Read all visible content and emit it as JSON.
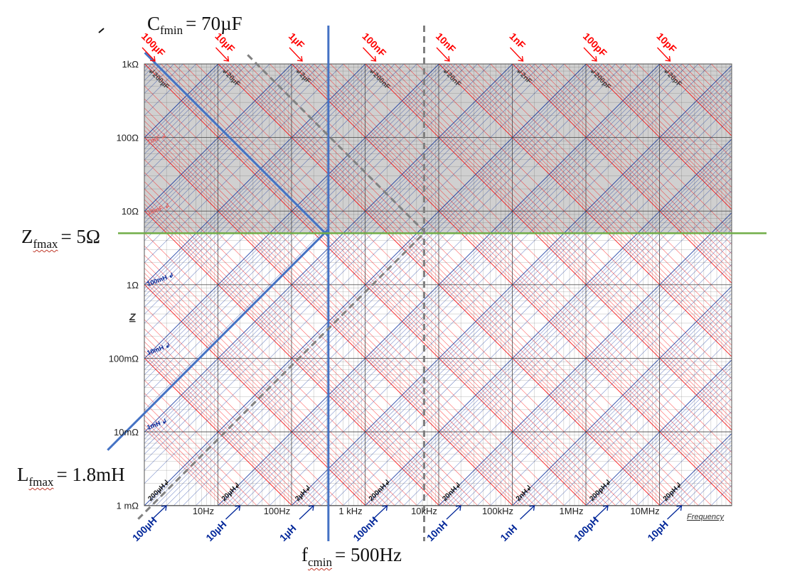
{
  "chart_data": {
    "type": "line",
    "xlabel": "Frequency",
    "ylabel": "Z",
    "x_scale": "log",
    "y_scale": "log",
    "xlim": [
      1,
      10000000
    ],
    "ylim": [
      0.001,
      1000
    ],
    "grid": true,
    "x_tick_labels": [
      "10Hz",
      "100Hz",
      "1 kHz",
      "10kHz",
      "100kHz",
      "1MHz",
      "10MHz"
    ],
    "x_tick_values": [
      10,
      100,
      1000,
      10000,
      100000,
      1000000,
      10000000
    ],
    "y_tick_labels": [
      "1kΩ",
      "100Ω",
      "10Ω",
      "1Ω",
      "100mΩ",
      "10mΩ",
      "1 mΩ"
    ],
    "y_tick_values": [
      1000,
      100,
      10,
      1,
      0.1,
      0.01,
      0.001
    ],
    "capacitance_labels": [
      "100µF",
      "10µF",
      "1µF",
      "100nF",
      "10nF",
      "1nF",
      "100pF",
      "10pF"
    ],
    "capacitance_sub_labels": [
      "200µF",
      "20µF",
      "2µF",
      "200nF",
      "20nF",
      "2nF",
      "200pF",
      "20pF"
    ],
    "capacitance_left_labels": [
      "1mF",
      "10mF"
    ],
    "inductance_labels": [
      "100µH",
      "10µH",
      "1µH",
      "100nH",
      "10nH",
      "1nH",
      "100pH",
      "10pH"
    ],
    "inductance_sub_labels": [
      "200µH",
      "20µH",
      "2µH",
      "200nH",
      "20nH",
      "2nH",
      "200pH",
      "20pH"
    ],
    "inductance_left_labels": [
      "100mH",
      "10mH",
      "1mH"
    ],
    "shaded_region": {
      "from_ohms": 5,
      "to_ohms": 1000,
      "color": "#d0d0d0"
    },
    "series": [
      {
        "kind": "capacitor",
        "capacitance_F": 7e-05,
        "color": "#4472c4",
        "style": "solid",
        "range_hz": [
          1.6,
          500
        ]
      },
      {
        "kind": "inductor",
        "inductance_H": 0.0018,
        "color": "#4472c4",
        "style": "solid",
        "range_hz": [
          0.5,
          500
        ]
      },
      {
        "kind": "vline",
        "x": 500,
        "color": "#4472c4",
        "style": "solid"
      },
      {
        "kind": "hline",
        "y": 5,
        "color": "#70ad47",
        "style": "solid"
      },
      {
        "kind": "capacitor",
        "capacitance_F": 3e-06,
        "color": "#808080",
        "style": "dashed",
        "range_hz": [
          40,
          10000
        ]
      },
      {
        "kind": "inductor",
        "inductance_H": 8e-05,
        "color": "#808080",
        "style": "dashed",
        "range_hz": [
          1.3,
          10000
        ]
      },
      {
        "kind": "vline",
        "x": 10000,
        "color": "#808080",
        "style": "dashed"
      }
    ],
    "annotations": {
      "c_fmin": {
        "symbol": "C",
        "sub": "fmin",
        "value": "= 70µF"
      },
      "z_fmax": {
        "symbol": "Z",
        "sub": "fmax",
        "value": "= 5Ω"
      },
      "l_fmax": {
        "symbol": "L",
        "sub": "fmax",
        "value": "= 1.8mH"
      },
      "f_cmin": {
        "symbol": "f",
        "sub": "cmin",
        "value": "= 500Hz"
      }
    }
  },
  "colors": {
    "cap": "#ff0000",
    "ind": "#002699",
    "blue_line": "#4472c4",
    "green_line": "#70ad47",
    "gray_dash": "#808080",
    "grid": "#404040",
    "shade": "#d0d0d0"
  }
}
